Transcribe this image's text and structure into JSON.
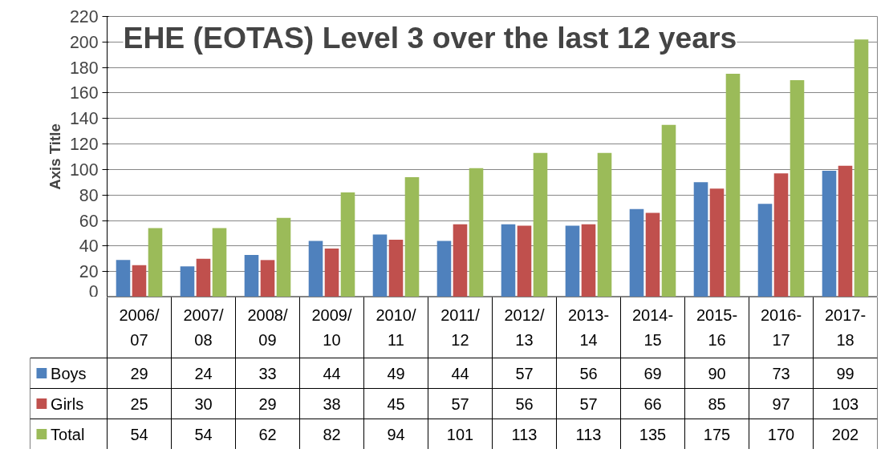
{
  "chart_data": {
    "type": "bar",
    "title": "EHE (EOTAS) Level 3 over the last 12 years",
    "ylabel": "Axis Title",
    "categories": [
      "2006/07",
      "2007/08",
      "2008/09",
      "2009/10",
      "2010/11",
      "2011/12",
      "2012/13",
      "2013-14",
      "2014-15",
      "2015-16",
      "2016-17",
      "2017-18"
    ],
    "series": [
      {
        "name": "Boys",
        "color": "#4f81bd",
        "values": [
          29,
          24,
          33,
          44,
          49,
          44,
          57,
          56,
          69,
          90,
          73,
          99
        ]
      },
      {
        "name": "Girls",
        "color": "#c0504d",
        "values": [
          25,
          30,
          29,
          38,
          45,
          57,
          56,
          57,
          66,
          85,
          97,
          103
        ]
      },
      {
        "name": "Total",
        "color": "#9bbb59",
        "values": [
          54,
          54,
          62,
          82,
          94,
          101,
          113,
          113,
          135,
          175,
          170,
          202
        ]
      }
    ],
    "ylim": [
      0,
      220
    ],
    "yticks": [
      0,
      20,
      40,
      60,
      80,
      100,
      120,
      140,
      160,
      180,
      200,
      220
    ],
    "grid": "y",
    "legend": "bottom",
    "data_labels": true
  }
}
